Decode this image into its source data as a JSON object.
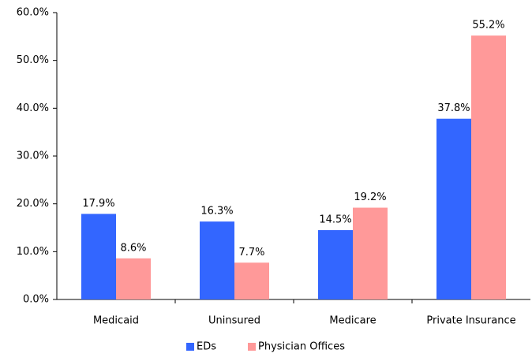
{
  "chart_data": {
    "type": "bar",
    "categories": [
      "Medicaid",
      "Uninsured",
      "Medicare",
      "Private Insurance"
    ],
    "series": [
      {
        "name": "EDs",
        "color": "#3366ff",
        "values": [
          17.9,
          16.3,
          14.5,
          37.8
        ],
        "value_labels": [
          "17.9%",
          "16.3%",
          "14.5%",
          "37.8%"
        ]
      },
      {
        "name": "Physician Offices",
        "color": "#ff9999",
        "values": [
          8.6,
          7.7,
          19.2,
          55.2
        ],
        "value_labels": [
          "8.6%",
          "7.7%",
          "19.2%",
          "55.2%"
        ]
      }
    ],
    "ylim": [
      0,
      60
    ],
    "yticks": [
      {
        "value": 0,
        "label": "0.0%"
      },
      {
        "value": 10,
        "label": "10.0%"
      },
      {
        "value": 20,
        "label": "20.0%"
      },
      {
        "value": 30,
        "label": "30.0%"
      },
      {
        "value": 40,
        "label": "40.0%"
      },
      {
        "value": 50,
        "label": "50.0%"
      },
      {
        "value": 60,
        "label": "60.0%"
      }
    ],
    "grid": false,
    "legend": "bottom"
  }
}
